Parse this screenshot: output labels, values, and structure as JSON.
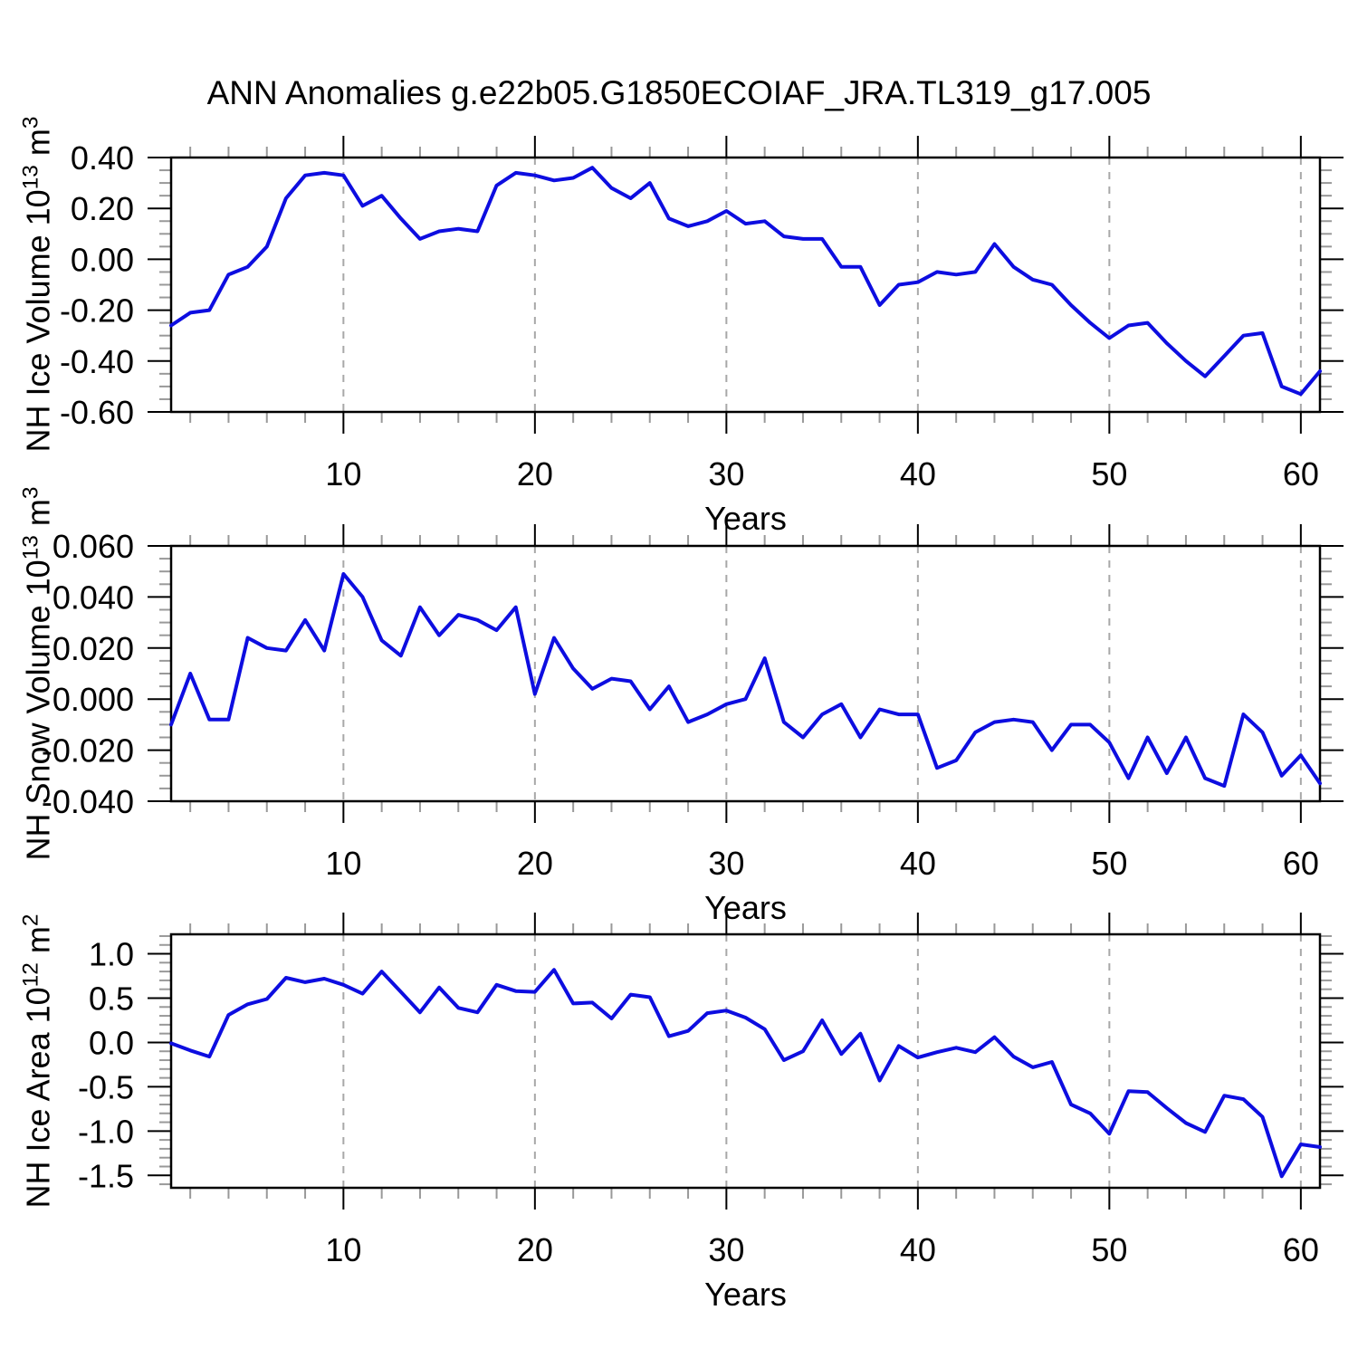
{
  "title": "ANN Anomalies g.e22b05.G1850ECOIAF_JRA.TL319_g17.005",
  "line_color": "#0d0de0",
  "gridline_color": "#a8a8a8",
  "minor_tick_color": "#999999",
  "major_tick_color": "#000000",
  "chart_data": [
    {
      "type": "line",
      "title": "",
      "xlabel": "Years",
      "ylabel": {
        "text": "NH Ice Volume 10",
        "exp": "13",
        "unit": " m",
        "unit_exp": "3"
      },
      "xlim": [
        1,
        61
      ],
      "ylim": [
        -0.6,
        0.4
      ],
      "x_tick_values": [
        10,
        20,
        30,
        40,
        50,
        60
      ],
      "x_tick_labels": [
        "10",
        "20",
        "30",
        "40",
        "50",
        "60"
      ],
      "x_minor_step": 2,
      "y_tick_values": [
        0.4,
        0.2,
        0.0,
        -0.2,
        -0.4,
        -0.6
      ],
      "y_tick_labels": [
        "0.40",
        "0.20",
        "0.00",
        "-0.20",
        "-0.40",
        "-0.60"
      ],
      "y_minor_step": 0.05,
      "grid": "vertical-dashed-at-major-x",
      "legend": "none",
      "x": [
        1,
        2,
        3,
        4,
        5,
        6,
        7,
        8,
        9,
        10,
        11,
        12,
        13,
        14,
        15,
        16,
        17,
        18,
        19,
        20,
        21,
        22,
        23,
        24,
        25,
        26,
        27,
        28,
        29,
        30,
        31,
        32,
        33,
        34,
        35,
        36,
        37,
        38,
        39,
        40,
        41,
        42,
        43,
        44,
        45,
        46,
        47,
        48,
        49,
        50,
        51,
        52,
        53,
        54,
        55,
        56,
        57,
        58,
        59,
        60,
        61
      ],
      "values": [
        -0.26,
        -0.21,
        -0.2,
        -0.06,
        -0.03,
        0.05,
        0.24,
        0.33,
        0.34,
        0.33,
        0.21,
        0.25,
        0.16,
        0.08,
        0.11,
        0.12,
        0.11,
        0.29,
        0.34,
        0.33,
        0.31,
        0.32,
        0.36,
        0.28,
        0.24,
        0.3,
        0.16,
        0.13,
        0.15,
        0.19,
        0.14,
        0.15,
        0.09,
        0.08,
        0.08,
        -0.03,
        -0.03,
        -0.18,
        -0.1,
        -0.09,
        -0.05,
        -0.06,
        -0.05,
        0.06,
        -0.03,
        -0.08,
        -0.1,
        -0.18,
        -0.25,
        -0.31,
        -0.26,
        -0.25,
        -0.33,
        -0.4,
        -0.46,
        -0.38,
        -0.3,
        -0.29,
        -0.5,
        -0.53,
        -0.44
      ]
    },
    {
      "type": "line",
      "title": "",
      "xlabel": "Years",
      "ylabel": {
        "text": "NH Snow Volume 10",
        "exp": "13",
        "unit": " m",
        "unit_exp": "3"
      },
      "xlim": [
        1,
        61
      ],
      "ylim": [
        -0.04,
        0.06
      ],
      "x_tick_values": [
        10,
        20,
        30,
        40,
        50,
        60
      ],
      "x_tick_labels": [
        "10",
        "20",
        "30",
        "40",
        "50",
        "60"
      ],
      "x_minor_step": 2,
      "y_tick_values": [
        0.06,
        0.04,
        0.02,
        0.0,
        -0.02,
        -0.04
      ],
      "y_tick_labels": [
        "0.060",
        "0.040",
        "0.020",
        "0.000",
        "-0.020",
        "-0.040"
      ],
      "y_minor_step": 0.005,
      "grid": "vertical-dashed-at-major-x",
      "legend": "none",
      "x": [
        1,
        2,
        3,
        4,
        5,
        6,
        7,
        8,
        9,
        10,
        11,
        12,
        13,
        14,
        15,
        16,
        17,
        18,
        19,
        20,
        21,
        22,
        23,
        24,
        25,
        26,
        27,
        28,
        29,
        30,
        31,
        32,
        33,
        34,
        35,
        36,
        37,
        38,
        39,
        40,
        41,
        42,
        43,
        44,
        45,
        46,
        47,
        48,
        49,
        50,
        51,
        52,
        53,
        54,
        55,
        56,
        57,
        58,
        59,
        60,
        61
      ],
      "values": [
        -0.01,
        0.01,
        -0.008,
        -0.008,
        0.024,
        0.02,
        0.019,
        0.031,
        0.019,
        0.049,
        0.04,
        0.023,
        0.017,
        0.036,
        0.025,
        0.033,
        0.031,
        0.027,
        0.036,
        0.002,
        0.024,
        0.012,
        0.004,
        0.008,
        0.007,
        -0.004,
        0.005,
        -0.009,
        -0.006,
        -0.002,
        0.0,
        0.016,
        -0.009,
        -0.015,
        -0.006,
        -0.002,
        -0.015,
        -0.004,
        -0.006,
        -0.006,
        -0.027,
        -0.024,
        -0.013,
        -0.009,
        -0.008,
        -0.009,
        -0.02,
        -0.01,
        -0.01,
        -0.017,
        -0.031,
        -0.015,
        -0.029,
        -0.015,
        -0.031,
        -0.034,
        -0.006,
        -0.013,
        -0.03,
        -0.022,
        -0.033
      ]
    },
    {
      "type": "line",
      "title": "",
      "xlabel": "Years",
      "ylabel": {
        "text": "NH Ice Area 10",
        "exp": "12",
        "unit": " m",
        "unit_exp": "2"
      },
      "xlim": [
        1,
        61
      ],
      "ylim": [
        -1.64,
        1.22
      ],
      "x_tick_values": [
        10,
        20,
        30,
        40,
        50,
        60
      ],
      "x_tick_labels": [
        "10",
        "20",
        "30",
        "40",
        "50",
        "60"
      ],
      "x_minor_step": 2,
      "y_tick_values": [
        1.0,
        0.5,
        0.0,
        -0.5,
        -1.0,
        -1.5
      ],
      "y_tick_labels": [
        "1.0",
        "0.5",
        "0.0",
        "-0.5",
        "-1.0",
        "-1.5"
      ],
      "y_minor_step": 0.1,
      "grid": "vertical-dashed-at-major-x",
      "legend": "none",
      "x": [
        1,
        2,
        3,
        4,
        5,
        6,
        7,
        8,
        9,
        10,
        11,
        12,
        13,
        14,
        15,
        16,
        17,
        18,
        19,
        20,
        21,
        22,
        23,
        24,
        25,
        26,
        27,
        28,
        29,
        30,
        31,
        32,
        33,
        34,
        35,
        36,
        37,
        38,
        39,
        40,
        41,
        42,
        43,
        44,
        45,
        46,
        47,
        48,
        49,
        50,
        51,
        52,
        53,
        54,
        55,
        56,
        57,
        58,
        59,
        60,
        61
      ],
      "values": [
        -0.01,
        -0.09,
        -0.16,
        0.31,
        0.43,
        0.49,
        0.73,
        0.68,
        0.72,
        0.65,
        0.55,
        0.8,
        0.57,
        0.34,
        0.62,
        0.39,
        0.34,
        0.65,
        0.58,
        0.57,
        0.82,
        0.44,
        0.45,
        0.27,
        0.54,
        0.51,
        0.07,
        0.13,
        0.33,
        0.36,
        0.28,
        0.15,
        -0.2,
        -0.1,
        0.25,
        -0.13,
        0.1,
        -0.43,
        -0.04,
        -0.17,
        -0.11,
        -0.06,
        -0.11,
        0.06,
        -0.16,
        -0.28,
        -0.22,
        -0.7,
        -0.8,
        -1.03,
        -0.55,
        -0.56,
        -0.74,
        -0.91,
        -1.01,
        -0.6,
        -0.64,
        -0.84,
        -1.51,
        -1.15,
        -1.18
      ]
    }
  ]
}
